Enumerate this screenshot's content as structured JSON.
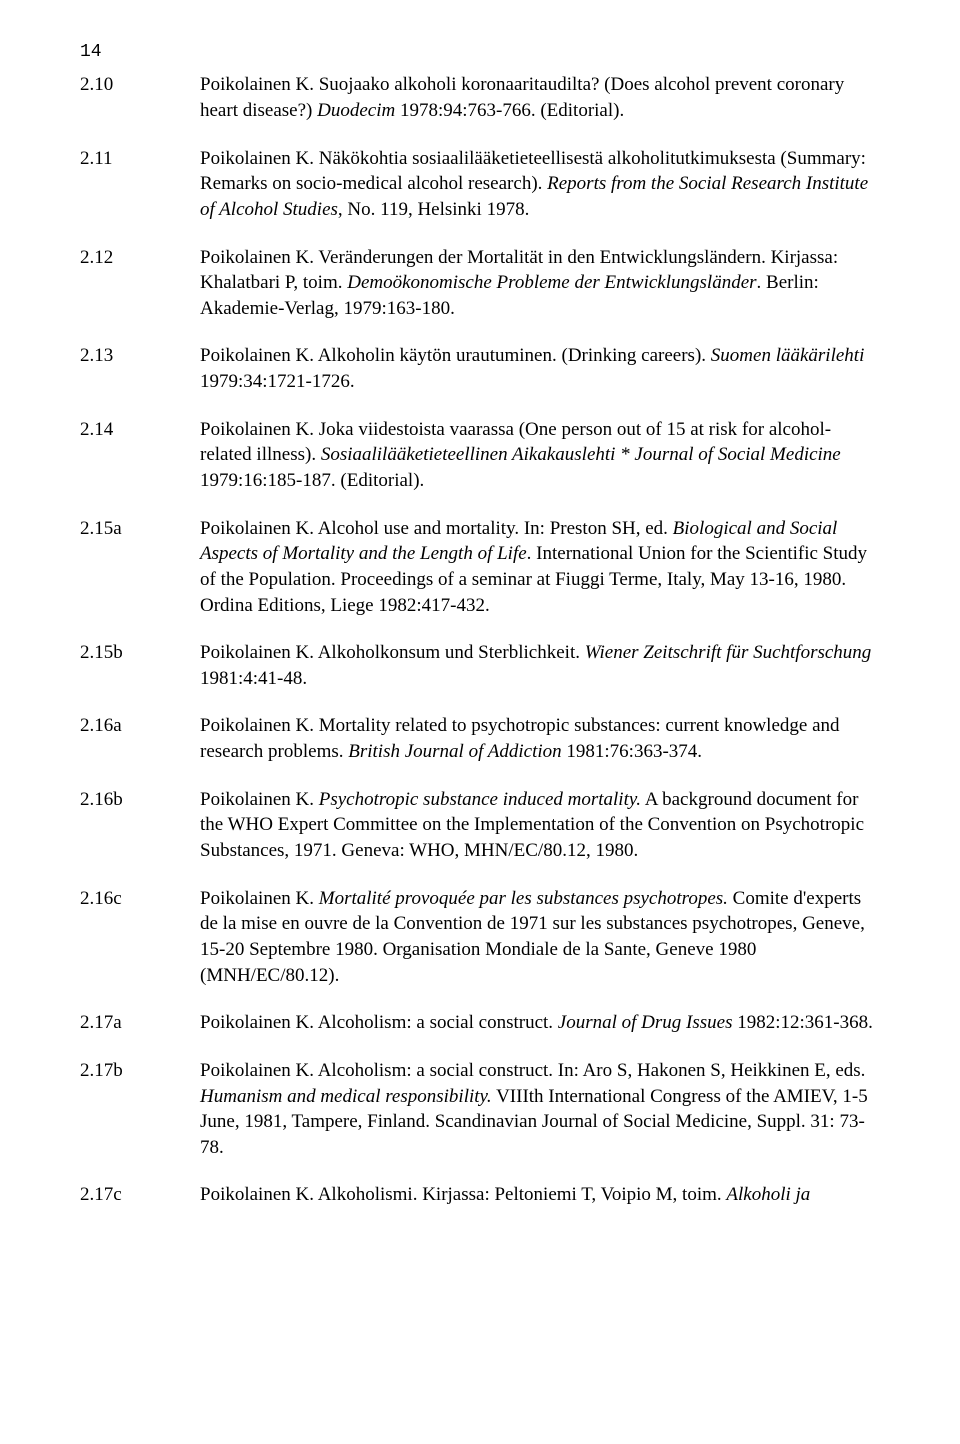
{
  "page_number": "14",
  "entries": [
    {
      "id": "2.10",
      "segments": [
        {
          "t": "Poikolainen K. Suojaako alkoholi koronaaritaudilta? (Does alcohol prevent coronary heart disease?) ",
          "i": false
        },
        {
          "t": "Duodecim",
          "i": true
        },
        {
          "t": " 1978:94:763-766. (Editorial).",
          "i": false
        }
      ]
    },
    {
      "id": "2.11",
      "segments": [
        {
          "t": "Poikolainen K. Näkökohtia sosiaalilääketieteellisestä alkoholitutkimuksesta (Summary: Remarks on socio-medical alcohol research). ",
          "i": false
        },
        {
          "t": "Reports from the Social Research Institute of Alcohol Studies",
          "i": true
        },
        {
          "t": ", No. 119, Helsinki 1978.",
          "i": false
        }
      ]
    },
    {
      "id": "2.12",
      "segments": [
        {
          "t": "Poikolainen K. Veränderungen der Mortalität in den Entwicklungsländern. Kirjassa: Khalatbari P, toim. ",
          "i": false
        },
        {
          "t": "Demoökonomische Probleme der Entwicklungsländer",
          "i": true
        },
        {
          "t": ". Berlin: Akademie-Verlag, 1979:163-180.",
          "i": false
        }
      ]
    },
    {
      "id": "2.13",
      "segments": [
        {
          "t": "Poikolainen K. Alkoholin käytön urautuminen. (Drinking careers). ",
          "i": false
        },
        {
          "t": "Suomen lääkärilehti",
          "i": true
        },
        {
          "t": " 1979:34:1721-1726.",
          "i": false
        }
      ]
    },
    {
      "id": "2.14",
      "segments": [
        {
          "t": "Poikolainen K. Joka viidestoista vaarassa (One person out of 15 at risk for alcohol-related illness). ",
          "i": false
        },
        {
          "t": "Sosiaalilääketieteellinen Aikakauslehti * Journal of Social Medicine",
          "i": true
        },
        {
          "t": " 1979:16:185-187. (Editorial).",
          "i": false
        }
      ]
    },
    {
      "id": "2.15a",
      "segments": [
        {
          "t": "Poikolainen K. Alcohol use and mortality. In: Preston SH, ed. ",
          "i": false
        },
        {
          "t": "Biological and Social Aspects of Mortality and the Length of Life",
          "i": true
        },
        {
          "t": ". International Union for the Scientific Study of the Population. Proceedings of a seminar at Fiuggi Terme, Italy, May 13-16, 1980. Ordina Editions, Liege 1982:417-432.",
          "i": false
        }
      ]
    },
    {
      "id": "2.15b",
      "segments": [
        {
          "t": "Poikolainen K. Alkoholkonsum und Sterblichkeit. ",
          "i": false
        },
        {
          "t": "Wiener Zeitschrift für Suchtforschung",
          "i": true
        },
        {
          "t": " 1981:4:41-48.",
          "i": false
        }
      ]
    },
    {
      "id": "2.16a",
      "segments": [
        {
          "t": "Poikolainen K. Mortality related to psychotropic substances: current knowledge and research problems. ",
          "i": false
        },
        {
          "t": "British Journal of Addiction",
          "i": true
        },
        {
          "t": " 1981:76:363-374.",
          "i": false
        }
      ]
    },
    {
      "id": "2.16b",
      "segments": [
        {
          "t": "Poikolainen K. ",
          "i": false
        },
        {
          "t": "Psychotropic substance induced mortality.",
          "i": true
        },
        {
          "t": " A background document for the WHO Expert Committee on the Implementation of the Convention on Psychotropic Substances, 1971. Geneva: WHO, MHN/EC/80.12, 1980.",
          "i": false
        }
      ]
    },
    {
      "id": "2.16c",
      "segments": [
        {
          "t": "Poikolainen K. ",
          "i": false
        },
        {
          "t": "Mortalité provoquée par les substances psychotropes.",
          "i": true
        },
        {
          "t": " Comite d'experts de la mise en ouvre de la Convention de 1971 sur les substances psychotropes, Geneve, 15-20 Septembre 1980. Organisation Mondiale de la Sante, Geneve 1980 (MNH/EC/80.12).",
          "i": false
        }
      ]
    },
    {
      "id": "2.17a",
      "segments": [
        {
          "t": "Poikolainen K. Alcoholism: a social construct. ",
          "i": false
        },
        {
          "t": "Journal of Drug Issues",
          "i": true
        },
        {
          "t": " 1982:12:361-368.",
          "i": false
        }
      ]
    },
    {
      "id": "2.17b",
      "segments": [
        {
          "t": "Poikolainen K. Alcoholism: a social construct. In: Aro S, Hakonen S, Heikkinen E, eds. ",
          "i": false
        },
        {
          "t": "Humanism and medical responsibility.",
          "i": true
        },
        {
          "t": " VIIIth International Congress of the AMIEV, 1-5 June, 1981, Tampere, Finland. Scandinavian Journal of Social Medicine, Suppl. 31: 73-78.",
          "i": false
        }
      ]
    },
    {
      "id": "2.17c",
      "segments": [
        {
          "t": "Poikolainen K. Alkoholismi. Kirjassa: Peltoniemi T, Voipio M, toim. ",
          "i": false
        },
        {
          "t": "Alkoholi ja",
          "i": true
        }
      ]
    }
  ]
}
